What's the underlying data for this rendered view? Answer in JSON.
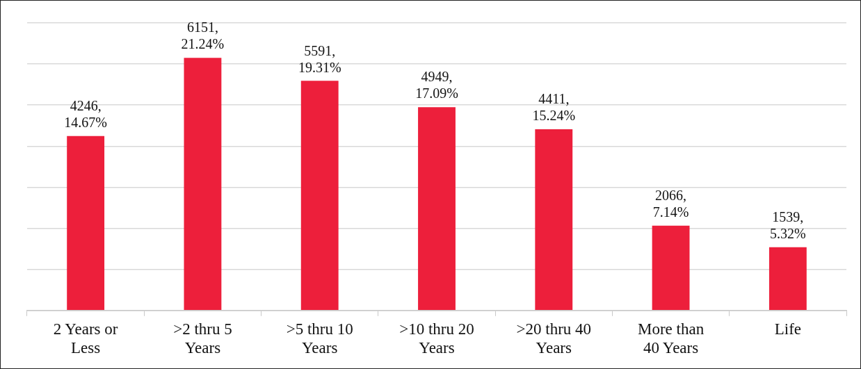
{
  "chart_data": {
    "type": "bar",
    "categories": [
      "2 Years or Less",
      ">2 thru 5 Years",
      ">5 thru 10 Years",
      ">10 thru 20 Years",
      ">20 thru 40 Years",
      "More than 40 Years",
      "Life"
    ],
    "values": [
      4246,
      6151,
      5591,
      4949,
      4411,
      2066,
      1539
    ],
    "value_labels": [
      "4246,\n14.67%",
      "6151,\n21.24%",
      "5591,\n19.31%",
      "4949,\n17.09%",
      "4411,\n15.24%",
      "2066,\n7.14%",
      "1539,\n5.32%"
    ],
    "color": "#ed1f3b",
    "ylim": [
      0,
      7000
    ],
    "yticks": [
      {
        "value": 0,
        "label": null
      },
      {
        "value": 1000,
        "label": null
      },
      {
        "value": 2000,
        "label": null
      },
      {
        "value": 3000,
        "label": null
      },
      {
        "value": 4000,
        "label": null
      },
      {
        "value": 5000,
        "label": null
      },
      {
        "value": 6000,
        "label": null
      },
      {
        "value": 7000,
        "label": null
      }
    ],
    "grid": "y",
    "tick_labels": "x",
    "legend": false
  }
}
